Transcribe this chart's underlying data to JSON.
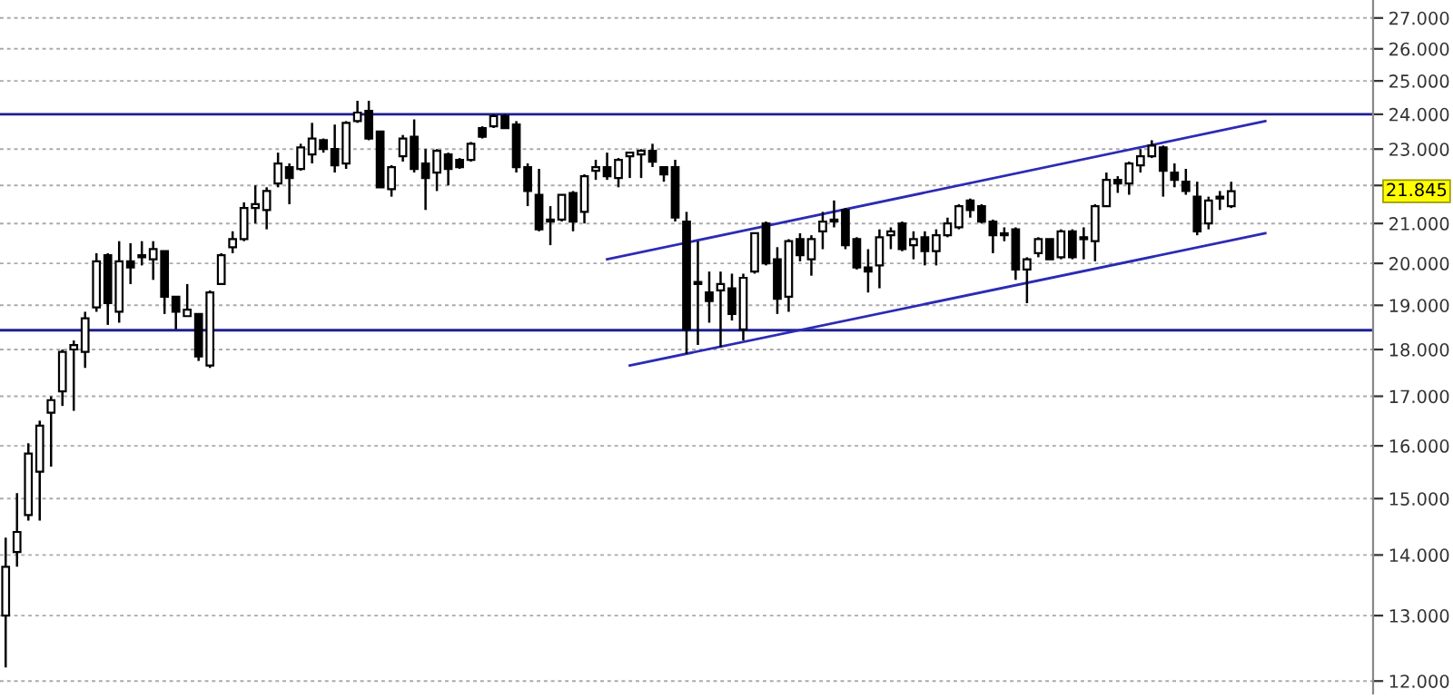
{
  "chart_data": {
    "type": "candlestick",
    "categories": [
      null,
      null,
      null,
      null,
      null,
      null,
      null,
      null,
      null,
      null,
      null,
      null,
      null,
      null,
      null,
      null,
      null,
      null,
      null,
      null,
      null,
      null,
      null,
      null,
      null,
      null,
      null,
      null,
      null,
      null,
      null,
      null,
      null,
      null,
      null,
      null,
      null,
      null,
      null,
      null,
      null,
      null,
      null,
      null,
      null,
      null,
      null,
      null,
      null,
      null,
      null,
      null,
      null,
      null,
      null,
      null,
      null,
      null,
      null,
      null,
      null,
      null,
      null,
      null,
      null,
      null,
      null,
      null,
      null,
      null,
      null,
      null,
      null,
      null,
      null,
      null,
      null,
      null,
      null,
      null,
      null,
      null,
      null,
      null,
      null,
      null,
      null,
      null,
      null,
      null,
      null,
      null,
      null,
      null,
      null,
      null,
      null,
      null,
      null,
      null,
      null,
      null,
      null,
      null,
      null,
      null,
      null,
      null,
      null,
      null,
      null,
      null,
      null,
      null,
      null,
      null,
      null,
      null,
      null,
      null,
      null
    ],
    "ohlc": [
      [
        13.0,
        14.3,
        12.2,
        13.8
      ],
      [
        14.05,
        15.1,
        13.8,
        14.4
      ],
      [
        14.7,
        16.05,
        14.6,
        15.85
      ],
      [
        15.5,
        16.5,
        14.6,
        16.4
      ],
      [
        16.66,
        17.0,
        15.6,
        16.92
      ],
      [
        17.1,
        18.0,
        16.8,
        17.95
      ],
      [
        18.0,
        18.2,
        16.7,
        18.1
      ],
      [
        17.95,
        18.85,
        17.6,
        18.7
      ],
      [
        18.95,
        20.25,
        18.85,
        20.05
      ],
      [
        20.2,
        20.25,
        18.55,
        19.05
      ],
      [
        18.85,
        20.55,
        18.6,
        20.05
      ],
      [
        20.05,
        20.5,
        19.5,
        19.9
      ],
      [
        20.2,
        20.55,
        19.95,
        20.15
      ],
      [
        20.1,
        20.55,
        19.6,
        20.35
      ],
      [
        20.3,
        20.3,
        18.8,
        19.2
      ],
      [
        19.2,
        19.2,
        18.45,
        18.85
      ],
      [
        18.75,
        19.5,
        18.75,
        18.9
      ],
      [
        18.8,
        18.8,
        17.75,
        17.85
      ],
      [
        17.65,
        19.35,
        17.6,
        19.3
      ],
      [
        19.5,
        20.25,
        19.5,
        20.2
      ],
      [
        20.4,
        20.8,
        20.25,
        20.6
      ],
      [
        20.6,
        21.55,
        20.55,
        21.4
      ],
      [
        21.4,
        22.0,
        21.0,
        21.5
      ],
      [
        21.35,
        21.95,
        20.85,
        21.85
      ],
      [
        22.05,
        22.9,
        21.95,
        22.6
      ],
      [
        22.5,
        22.6,
        21.5,
        22.2
      ],
      [
        22.45,
        23.15,
        22.4,
        23.05
      ],
      [
        22.85,
        23.75,
        22.6,
        23.3
      ],
      [
        23.25,
        23.3,
        22.9,
        23.0
      ],
      [
        23.0,
        23.7,
        22.35,
        22.55
      ],
      [
        22.6,
        23.8,
        22.45,
        23.75
      ],
      [
        23.8,
        24.4,
        23.75,
        24.05
      ],
      [
        24.1,
        24.4,
        23.25,
        23.3
      ],
      [
        23.5,
        23.5,
        21.95,
        21.95
      ],
      [
        21.9,
        22.55,
        21.7,
        22.5
      ],
      [
        22.8,
        23.4,
        22.65,
        23.3
      ],
      [
        23.35,
        23.85,
        22.35,
        22.45
      ],
      [
        22.6,
        23.0,
        21.35,
        22.2
      ],
      [
        22.35,
        23.0,
        21.85,
        22.95
      ],
      [
        22.85,
        22.9,
        22.0,
        22.45
      ],
      [
        22.7,
        22.75,
        22.45,
        22.5
      ],
      [
        22.7,
        23.2,
        22.65,
        23.15
      ],
      [
        23.6,
        23.65,
        23.3,
        23.35
      ],
      [
        23.65,
        24.0,
        23.6,
        23.95
      ],
      [
        23.95,
        24.0,
        23.6,
        23.6
      ],
      [
        23.7,
        23.8,
        22.35,
        22.5
      ],
      [
        22.5,
        22.6,
        21.45,
        21.85
      ],
      [
        21.75,
        22.45,
        20.8,
        20.85
      ],
      [
        21.05,
        21.45,
        20.45,
        21.1
      ],
      [
        21.1,
        21.75,
        21.05,
        21.75
      ],
      [
        21.8,
        21.85,
        20.8,
        21.05
      ],
      [
        21.3,
        22.3,
        21.0,
        22.25
      ],
      [
        22.4,
        22.7,
        22.15,
        22.5
      ],
      [
        22.5,
        22.9,
        22.15,
        22.25
      ],
      [
        22.2,
        22.75,
        21.95,
        22.7
      ],
      [
        22.8,
        22.9,
        22.2,
        22.9
      ],
      [
        22.85,
        23.0,
        22.2,
        22.95
      ],
      [
        22.95,
        23.15,
        22.5,
        22.65
      ],
      [
        22.5,
        22.5,
        22.1,
        22.3
      ],
      [
        22.5,
        22.7,
        21.05,
        21.15
      ],
      [
        21.05,
        21.3,
        17.9,
        18.45
      ],
      [
        19.5,
        20.55,
        18.1,
        19.55
      ],
      [
        19.3,
        19.8,
        18.6,
        19.1
      ],
      [
        19.35,
        19.8,
        18.05,
        19.5
      ],
      [
        19.4,
        19.75,
        18.65,
        18.8
      ],
      [
        18.45,
        19.75,
        18.2,
        19.65
      ],
      [
        19.8,
        20.75,
        19.75,
        20.75
      ],
      [
        21.0,
        21.05,
        19.95,
        20.0
      ],
      [
        20.1,
        20.4,
        18.8,
        19.15
      ],
      [
        19.2,
        20.6,
        18.85,
        20.55
      ],
      [
        20.6,
        20.75,
        20.05,
        20.2
      ],
      [
        20.1,
        20.7,
        19.7,
        20.6
      ],
      [
        20.8,
        21.3,
        20.35,
        21.05
      ],
      [
        21.05,
        21.6,
        20.9,
        21.1
      ],
      [
        21.35,
        21.4,
        20.35,
        20.45
      ],
      [
        20.6,
        20.65,
        19.85,
        19.9
      ],
      [
        19.9,
        20.35,
        19.3,
        19.8
      ],
      [
        19.95,
        20.85,
        19.4,
        20.65
      ],
      [
        20.7,
        20.9,
        20.35,
        20.8
      ],
      [
        21.0,
        21.05,
        20.3,
        20.35
      ],
      [
        20.45,
        20.8,
        20.1,
        20.6
      ],
      [
        20.65,
        20.8,
        19.95,
        20.3
      ],
      [
        20.3,
        20.85,
        19.95,
        20.7
      ],
      [
        20.7,
        21.15,
        20.65,
        21.0
      ],
      [
        20.9,
        21.5,
        20.85,
        21.45
      ],
      [
        21.6,
        21.65,
        21.15,
        21.35
      ],
      [
        21.45,
        21.5,
        21.0,
        21.05
      ],
      [
        21.05,
        21.1,
        20.25,
        20.7
      ],
      [
        20.75,
        20.9,
        20.55,
        20.7
      ],
      [
        20.85,
        20.9,
        19.6,
        19.85
      ],
      [
        19.85,
        20.15,
        19.05,
        20.1
      ],
      [
        20.25,
        20.65,
        20.15,
        20.6
      ],
      [
        20.6,
        20.6,
        20.1,
        20.1
      ],
      [
        20.15,
        20.85,
        20.1,
        20.8
      ],
      [
        20.8,
        20.85,
        20.1,
        20.15
      ],
      [
        20.6,
        20.9,
        20.1,
        20.65
      ],
      [
        20.55,
        21.5,
        20.05,
        21.45
      ],
      [
        21.45,
        22.35,
        21.45,
        22.15
      ],
      [
        22.15,
        22.25,
        21.8,
        22.05
      ],
      [
        22.05,
        22.65,
        21.75,
        22.6
      ],
      [
        22.55,
        23.0,
        22.35,
        22.8
      ],
      [
        22.8,
        23.25,
        22.75,
        23.1
      ],
      [
        23.05,
        23.1,
        21.7,
        22.4
      ],
      [
        22.35,
        22.6,
        21.95,
        22.15
      ],
      [
        22.1,
        22.45,
        21.75,
        21.85
      ],
      [
        21.7,
        22.1,
        20.7,
        20.8
      ],
      [
        21.0,
        21.7,
        20.85,
        21.6
      ],
      [
        21.65,
        21.85,
        21.35,
        21.7
      ],
      [
        21.45,
        22.1,
        21.4,
        21.845
      ],
      null,
      null,
      null,
      null,
      null,
      null,
      null,
      null,
      null,
      null,
      null,
      null
    ],
    "series": [
      {
        "type": "line",
        "color": "#2b2bb5",
        "values": [
          null,
          null,
          null,
          null,
          null,
          null,
          null,
          null,
          null,
          null,
          null,
          null,
          null,
          null,
          null,
          null,
          null,
          null,
          null,
          null,
          null,
          null,
          null,
          null,
          null,
          null,
          null,
          null,
          null,
          null,
          null,
          null,
          null,
          null,
          null,
          null,
          null,
          null,
          null,
          null,
          null,
          null,
          null,
          null,
          null,
          null,
          null,
          null,
          null,
          null,
          null,
          null,
          null,
          20.1,
          null,
          null,
          null,
          null,
          null,
          null,
          null,
          null,
          null,
          null,
          null,
          null,
          null,
          null,
          null,
          null,
          null,
          null,
          null,
          null,
          null,
          null,
          null,
          null,
          null,
          null,
          null,
          null,
          null,
          null,
          null,
          null,
          null,
          null,
          null,
          null,
          null,
          null,
          null,
          null,
          null,
          null,
          null,
          null,
          null,
          null,
          null,
          null,
          null,
          null,
          null,
          null,
          null,
          null,
          null,
          null,
          null,
          23.8,
          null,
          null,
          null,
          null,
          null,
          null,
          null,
          null,
          null
        ]
      },
      {
        "type": "line",
        "color": "#2b2bb5",
        "values": [
          null,
          null,
          null,
          null,
          null,
          null,
          null,
          null,
          null,
          null,
          null,
          null,
          null,
          null,
          null,
          null,
          null,
          null,
          null,
          null,
          null,
          null,
          null,
          null,
          null,
          null,
          null,
          null,
          null,
          null,
          null,
          null,
          null,
          null,
          null,
          null,
          null,
          null,
          null,
          null,
          null,
          null,
          null,
          null,
          null,
          null,
          null,
          null,
          null,
          null,
          null,
          null,
          null,
          null,
          null,
          17.65,
          null,
          null,
          null,
          null,
          null,
          null,
          null,
          null,
          null,
          null,
          null,
          null,
          null,
          null,
          null,
          null,
          null,
          null,
          null,
          null,
          null,
          null,
          null,
          null,
          null,
          null,
          null,
          null,
          null,
          null,
          null,
          null,
          null,
          null,
          null,
          null,
          null,
          null,
          null,
          null,
          null,
          null,
          null,
          null,
          null,
          null,
          null,
          null,
          null,
          null,
          null,
          null,
          null,
          null,
          null,
          20.75,
          null,
          null,
          null,
          null,
          null,
          null,
          null,
          null,
          null
        ]
      }
    ],
    "ref_lines": [
      {
        "axis": "y",
        "value": 24.0,
        "color": "#1f1f8f"
      },
      {
        "axis": "y",
        "value": 18.43,
        "color": "#1f1f8f"
      }
    ],
    "annotations": [
      "21.845"
    ],
    "log": true,
    "ylim": [
      11.82,
      27.6
    ],
    "yticks": [
      {
        "value": 12,
        "label": "12.000"
      },
      {
        "value": 13,
        "label": "13.000"
      },
      {
        "value": 14,
        "label": "14.000"
      },
      {
        "value": 15,
        "label": "15.000"
      },
      {
        "value": 16,
        "label": "16.000"
      },
      {
        "value": 17,
        "label": "17.000"
      },
      {
        "value": 18,
        "label": "18.000"
      },
      {
        "value": 19,
        "label": "19.000"
      },
      {
        "value": 20,
        "label": "20.000"
      },
      {
        "value": 21,
        "label": "21.000"
      },
      {
        "value": 22,
        "label": null
      },
      {
        "value": 23,
        "label": "23.000"
      },
      {
        "value": 24,
        "label": "24.000"
      },
      {
        "value": 25,
        "label": "25.000"
      },
      {
        "value": 26,
        "label": "26.000"
      },
      {
        "value": 27,
        "label": "27.000"
      }
    ],
    "grid": "y",
    "tick_labels": "y"
  }
}
